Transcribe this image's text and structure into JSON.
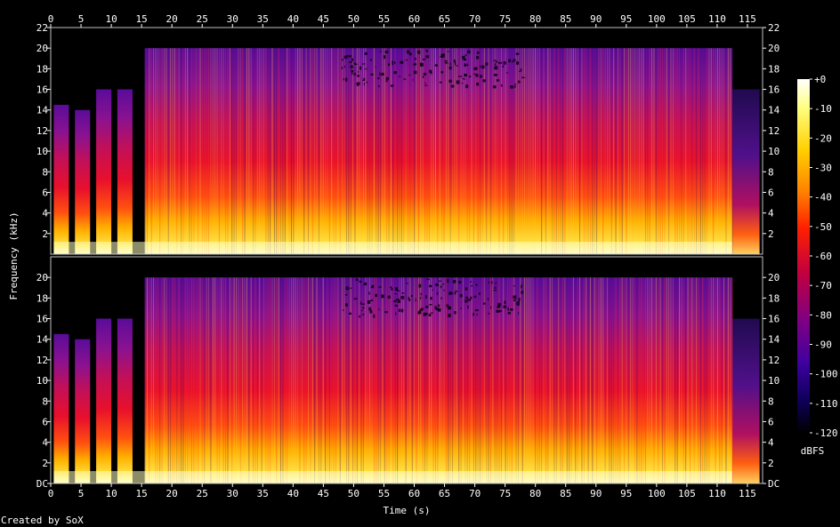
{
  "chart_data": {
    "type": "heatmap",
    "subtype": "spectrogram",
    "channels": 2,
    "xlabel": "Time (s)",
    "ylabel": "Frequency (kHz)",
    "footer": "Created by SoX",
    "x_ticks": [
      "0",
      "5",
      "10",
      "15",
      "20",
      "25",
      "30",
      "35",
      "40",
      "45",
      "50",
      "55",
      "60",
      "65",
      "70",
      "75",
      "80",
      "85",
      "90",
      "95",
      "100",
      "105",
      "110",
      "115"
    ],
    "y_ticks_top": [
      "2",
      "4",
      "6",
      "8",
      "10",
      "12",
      "14",
      "16",
      "18",
      "20",
      "22"
    ],
    "y_ticks_bottom": [
      "DC",
      "2",
      "4",
      "6",
      "8",
      "10",
      "12",
      "14",
      "16",
      "18",
      "20"
    ],
    "xlim": [
      0,
      117.5
    ],
    "ylim": [
      0,
      22
    ],
    "colorbar": {
      "label": "dBFS",
      "range": [
        -120,
        0
      ],
      "ticks": [
        "+0",
        "-10",
        "-20",
        "-30",
        "-40",
        "-50",
        "-60",
        "-70",
        "-80",
        "-90",
        "-100",
        "-110",
        "-120"
      ]
    },
    "segments": [
      {
        "start": 0.5,
        "end": 3.0,
        "top_khz": 14.5
      },
      {
        "start": 4.0,
        "end": 6.5,
        "top_khz": 14.0
      },
      {
        "start": 7.5,
        "end": 10.0,
        "top_khz": 16.0
      },
      {
        "start": 11.0,
        "end": 13.5,
        "top_khz": 16.0
      },
      {
        "start": 15.5,
        "end": 112.5,
        "top_khz": 20.0
      },
      {
        "start": 112.5,
        "end": 117.0,
        "top_khz": 16.0
      }
    ]
  }
}
